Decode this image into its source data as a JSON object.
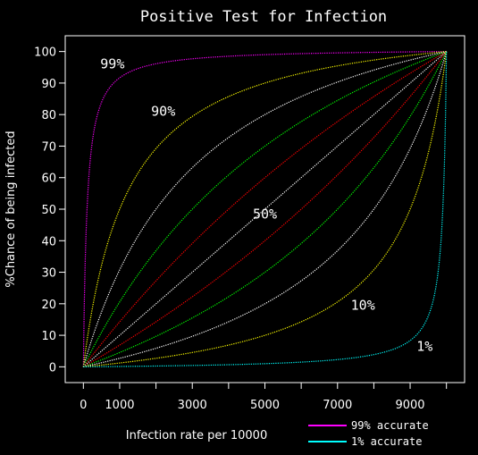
{
  "chart_data": {
    "type": "line",
    "title": "Positive Test for Infection",
    "xlabel": "Infection rate per 10000",
    "ylabel": "%Chance of being infected",
    "xlim": [
      -500,
      10500
    ],
    "ylim": [
      -5,
      105
    ],
    "x_ticks": [
      0,
      1000,
      3000,
      5000,
      7000,
      9000
    ],
    "x_tick_marks": [
      0,
      1000,
      2000,
      3000,
      4000,
      5000,
      6000,
      7000,
      8000,
      9000,
      10000
    ],
    "y_ticks": [
      0,
      10,
      20,
      30,
      40,
      50,
      60,
      70,
      80,
      90,
      100
    ],
    "grid": false,
    "series": [
      {
        "name": "99% accurate",
        "accuracy": 0.99,
        "color": "#ff00ff"
      },
      {
        "accuracy": 0.9,
        "color": "#ffff00"
      },
      {
        "accuracy": 0.8,
        "color": "#ffffff"
      },
      {
        "accuracy": 0.7,
        "color": "#00ff00"
      },
      {
        "accuracy": 0.6,
        "color": "#ff0000"
      },
      {
        "accuracy": 0.5,
        "color": "#ffffff"
      },
      {
        "accuracy": 0.4,
        "color": "#ff0000"
      },
      {
        "accuracy": 0.3,
        "color": "#00ff00"
      },
      {
        "accuracy": 0.2,
        "color": "#ffffff"
      },
      {
        "accuracy": 0.1,
        "color": "#ffff00"
      },
      {
        "name": "1% accurate",
        "accuracy": 0.01,
        "color": "#00ffff"
      }
    ],
    "annotations": [
      {
        "text": "99%",
        "x": 800,
        "y": 96
      },
      {
        "text": "90%",
        "x": 2200,
        "y": 81
      },
      {
        "text": "50%",
        "x": 5000,
        "y": 48.5
      },
      {
        "text": "10%",
        "x": 7700,
        "y": 19.5
      },
      {
        "text": "1%",
        "x": 9400,
        "y": 6.5
      }
    ],
    "legend": {
      "placement": "bottom-right",
      "entries": [
        {
          "label": "99% accurate",
          "color": "#ff00ff"
        },
        {
          "label": "1% accurate",
          "color": "#00ffff"
        }
      ]
    }
  }
}
